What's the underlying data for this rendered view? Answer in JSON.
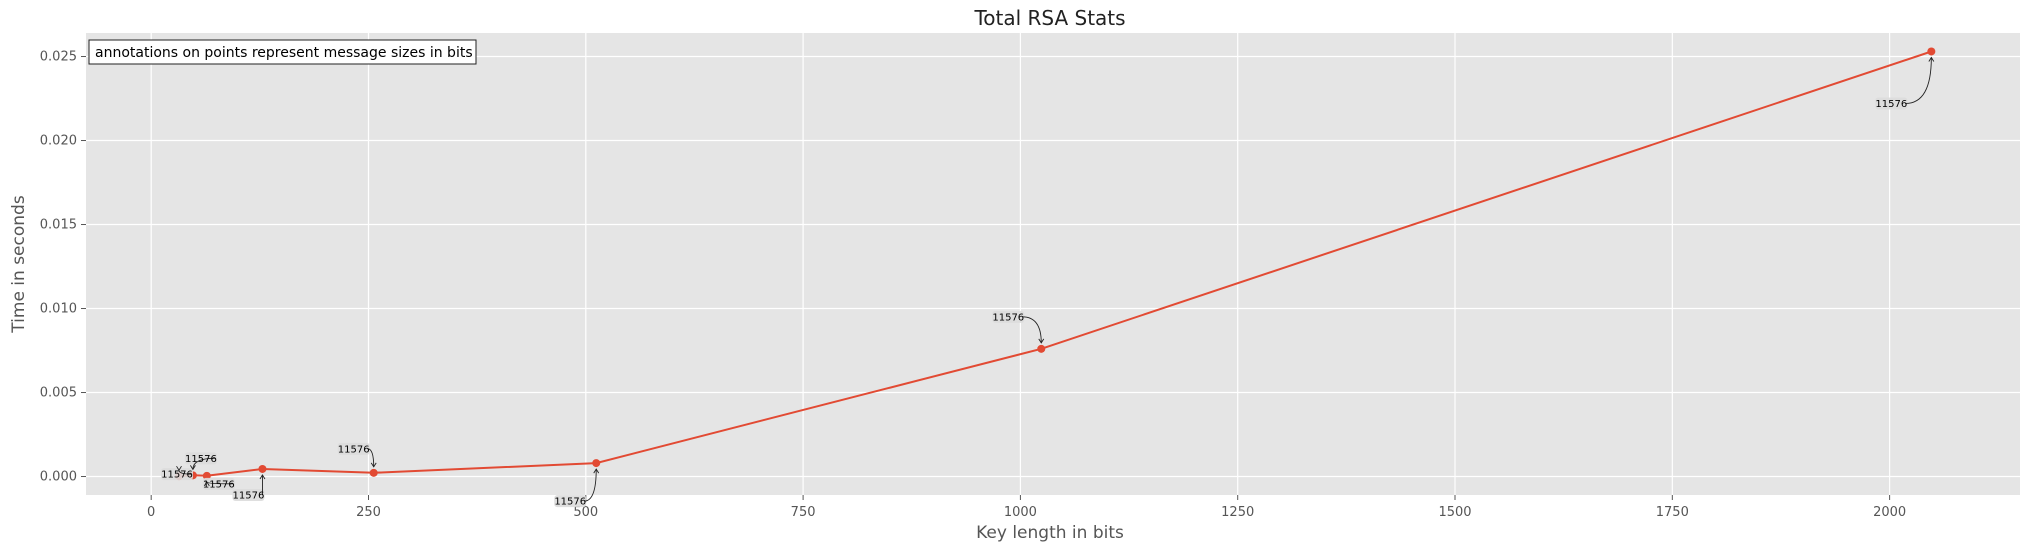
{
  "chart_data": {
    "type": "line",
    "title": "Total RSA Stats",
    "xlabel": "Key length in bits",
    "ylabel": "Time in seconds",
    "xlim": [
      -75,
      2150
    ],
    "ylim": [
      -0.0011,
      0.0264
    ],
    "x_ticks": [
      0,
      250,
      500,
      750,
      1000,
      1250,
      1500,
      1750,
      2000
    ],
    "y_ticks": [
      0.0,
      0.005,
      0.01,
      0.015,
      0.02,
      0.025
    ],
    "x_tick_labels": [
      "0",
      "250",
      "500",
      "750",
      "1000",
      "1250",
      "1500",
      "1750",
      "2000"
    ],
    "y_tick_labels": [
      "0.000",
      "0.005",
      "0.010",
      "0.015",
      "0.020",
      "0.025"
    ],
    "grid": true,
    "note": "annotations on points represent message sizes in bits",
    "series": [
      {
        "color": "#E24A33",
        "points": [
          {
            "x": 32,
            "y": 2e-05,
            "label": "11576"
          },
          {
            "x": 48,
            "y": 7e-05,
            "label": "11576"
          },
          {
            "x": 64,
            "y": 4e-05,
            "label": "11576"
          },
          {
            "x": 128,
            "y": 0.00045,
            "label": "11576"
          },
          {
            "x": 256,
            "y": 0.00022,
            "label": "11576"
          },
          {
            "x": 512,
            "y": 0.0008,
            "label": "11576"
          },
          {
            "x": 1024,
            "y": 0.0076,
            "label": "11576"
          },
          {
            "x": 2048,
            "y": 0.0253,
            "label": "11576"
          }
        ]
      }
    ]
  }
}
